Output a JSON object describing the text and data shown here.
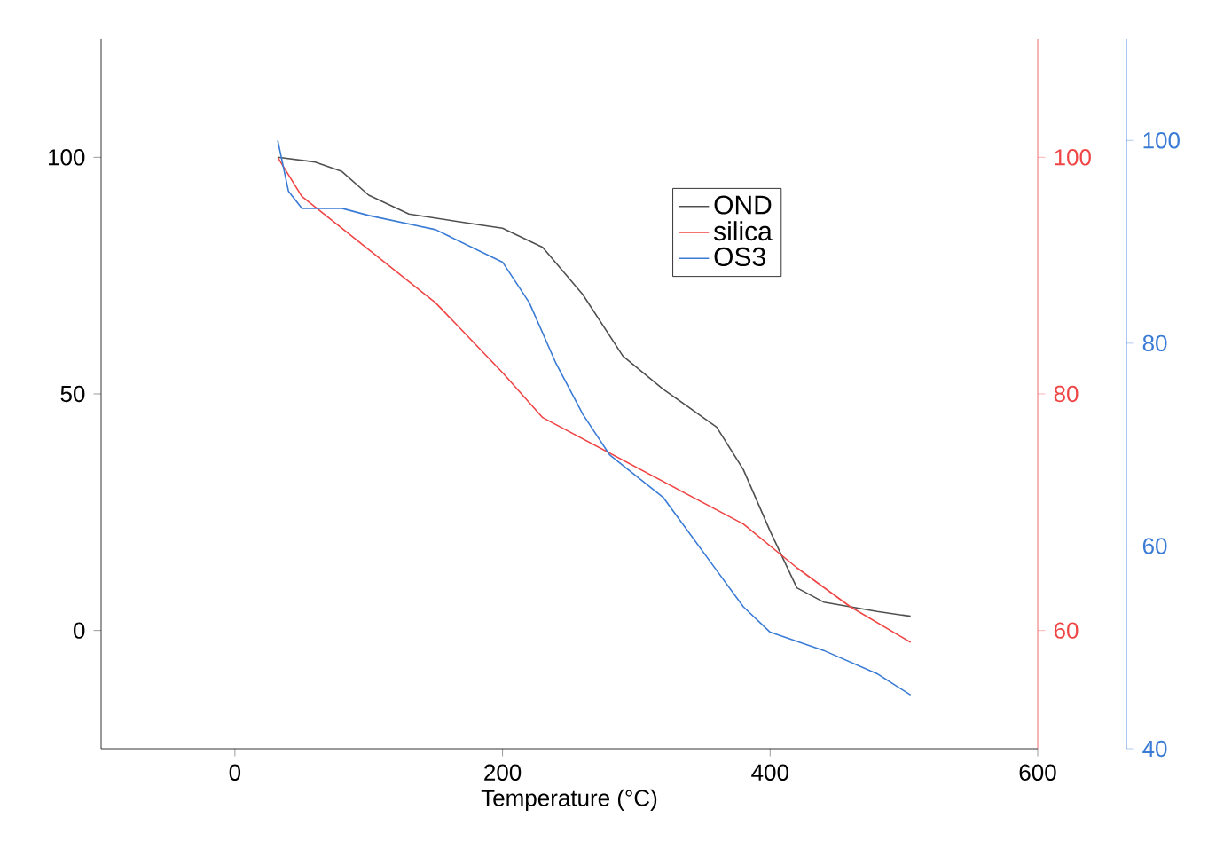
{
  "chart_data": {
    "type": "line",
    "xlabel": "Temperature (°C)",
    "xlim": [
      -100,
      600
    ],
    "xticks": [
      0,
      200,
      400,
      600
    ],
    "ylim": [
      -25,
      125
    ],
    "yticks": [
      0,
      50,
      100
    ],
    "y2lim": [
      50,
      110
    ],
    "y2ticks": [
      60,
      80,
      100
    ],
    "y3lim": [
      40,
      110
    ],
    "y3ticks": [
      40,
      60,
      80,
      100
    ],
    "legend": "top",
    "marker": "none",
    "line_style": "solid",
    "series": [
      {
        "name": "OND",
        "color": "#505050",
        "axis": "y",
        "x": [
          32,
          60,
          80,
          100,
          130,
          200,
          230,
          260,
          290,
          320,
          360,
          380,
          400,
          420,
          440,
          480,
          505
        ],
        "values": [
          100,
          99,
          97,
          92,
          88,
          85,
          81,
          71,
          58,
          51,
          43,
          34,
          21,
          9,
          6,
          4,
          3
        ]
      },
      {
        "name": "silica",
        "color": "#f04545",
        "axis": "y2",
        "x": [
          32,
          50,
          100,
          150,
          200,
          230,
          280,
          330,
          380,
          420,
          460,
          505
        ],
        "values": [
          100,
          96.7,
          92.2,
          87.7,
          81.8,
          78,
          75,
          72,
          69,
          65.3,
          62,
          59
        ]
      },
      {
        "name": "OS3",
        "color": "#3a7bd5",
        "axis": "y3",
        "x": [
          32,
          40,
          50,
          65,
          80,
          100,
          150,
          200,
          220,
          240,
          260,
          280,
          320,
          360,
          380,
          400,
          440,
          480,
          505
        ],
        "values": [
          100,
          95,
          93.3,
          93.3,
          93.3,
          92.6,
          91.2,
          88,
          84,
          78,
          73,
          69,
          64.8,
          57.6,
          54,
          51.5,
          49.7,
          47.4,
          45.3
        ]
      }
    ]
  }
}
